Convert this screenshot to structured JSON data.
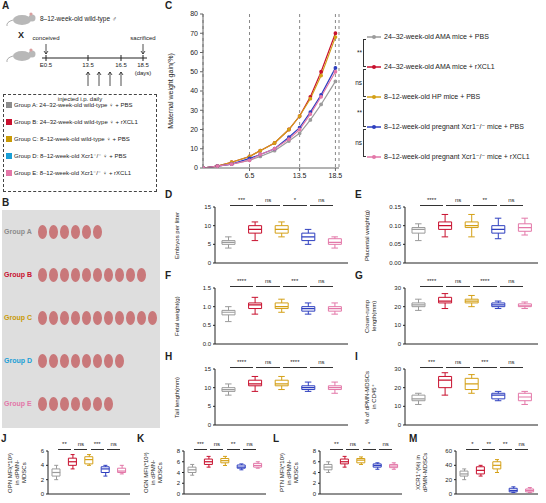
{
  "diagram": {
    "panel": "A",
    "male": "8–12-week-old wild-type ♂",
    "cross": "X",
    "events": [
      {
        "label": "conceived",
        "day": 0.5
      },
      {
        "label": "sacrificed",
        "day": 18.5
      }
    ],
    "timeline": [
      {
        "label": "E0.5",
        "day": 0.5
      },
      {
        "label": "13.5",
        "day": 13.5
      },
      {
        "label": "16.5",
        "day": 16.5
      },
      {
        "label": "18.5",
        "day": 18.5
      }
    ],
    "unit": "(days)",
    "injection_days": [
      13.5,
      14.5,
      15.5,
      16.5
    ],
    "box_title": "injected i.p. daily",
    "groups": [
      {
        "text": "Group A: 24–32-week-old wild-type ♀ + PBS",
        "color": "#8c8c8c"
      },
      {
        "text": "Group B: 24–32-week-old wild-type ♀ + rXCL1",
        "color": "#c8102e"
      },
      {
        "text": "Group C: 8–12-week-old wild-type ♀ + PBS",
        "color": "#c99a06"
      },
      {
        "text": "Group D: 8–12-week-old Xcr1⁻/⁻ ♀ + PBS",
        "color": "#1a9fd6"
      },
      {
        "text": "Group E: 8–12-week-old Xcr1⁻/⁻ ♀ + rXCL1",
        "color": "#e377a8"
      }
    ]
  },
  "photo": {
    "panel": "B",
    "rows": [
      {
        "label": "Group A",
        "color": "#8c8c8c",
        "embryos": 6
      },
      {
        "label": "Group B",
        "color": "#c8102e",
        "embryos": 10
      },
      {
        "label": "Group C",
        "color": "#c99a06",
        "embryos": 11
      },
      {
        "label": "Group D",
        "color": "#1a9fd6",
        "embryos": 8
      },
      {
        "label": "Group E",
        "color": "#e377a8",
        "embryos": 7
      }
    ]
  },
  "chart_data": [
    {
      "panel": "C",
      "type": "line",
      "ylabel": "Maternal weight gain(%)",
      "x": [
        0,
        2,
        4,
        6.5,
        8,
        10,
        12,
        13.5,
        15,
        16.5,
        18.5
      ],
      "xlim": [
        0,
        19
      ],
      "xticks": [
        6.5,
        13.5,
        18.5
      ],
      "ylim": [
        0,
        80
      ],
      "yticks": [
        0,
        10,
        20,
        30,
        40,
        50,
        60,
        70,
        80
      ],
      "grid": true,
      "marker": "circle",
      "legend": "right",
      "annotations": [
        "**",
        "ns",
        "**",
        "ns"
      ],
      "series": [
        {
          "name": "24–32-week-old AMA mice + PBS",
          "color": "#9b9b9b",
          "values": [
            0,
            1,
            2,
            4,
            6,
            9,
            14,
            18,
            25,
            33,
            45
          ]
        },
        {
          "name": "24–32-week-old AMA mice + rXCL1",
          "color": "#c8102e",
          "values": [
            0,
            1,
            3,
            6,
            9,
            13,
            20,
            27,
            37,
            50,
            70
          ]
        },
        {
          "name": "8–12-week-old HP mice + PBS",
          "color": "#d4a017",
          "values": [
            0,
            1,
            3,
            6,
            9,
            13,
            20,
            27,
            36,
            48,
            68
          ]
        },
        {
          "name": "8–12-week-old pregnant Xcr1⁻/⁻ mice + PBS",
          "color": "#2e3fbf",
          "values": [
            0,
            1,
            2,
            5,
            7,
            10,
            16,
            21,
            29,
            38,
            52
          ]
        },
        {
          "name": "8–12-week-old pregnant Xcr1⁻/⁻ mice + rXCL1",
          "color": "#e377a8",
          "values": [
            0,
            1,
            2,
            4,
            7,
            10,
            15,
            20,
            28,
            37,
            50
          ]
        }
      ]
    },
    {
      "panel": "D",
      "type": "box",
      "ylabel": "Embryos per litter",
      "ylim": [
        0,
        15
      ],
      "yticks": [
        0,
        5,
        10,
        15
      ],
      "annotations": [
        "***",
        "ns",
        "*",
        "ns"
      ],
      "colors": [
        "#9b9b9b",
        "#c8102e",
        "#d4a017",
        "#2e3fbf",
        "#e377a8"
      ],
      "boxes": [
        {
          "min": 4,
          "q1": 5,
          "median": 5.5,
          "q3": 6,
          "max": 7
        },
        {
          "min": 6,
          "q1": 8,
          "median": 9,
          "q3": 10,
          "max": 11
        },
        {
          "min": 7,
          "q1": 8,
          "median": 9,
          "q3": 10,
          "max": 11
        },
        {
          "min": 5,
          "q1": 6,
          "median": 7,
          "q3": 8,
          "max": 9
        },
        {
          "min": 4,
          "q1": 5,
          "median": 5.5,
          "q3": 6.5,
          "max": 7
        }
      ]
    },
    {
      "panel": "E",
      "type": "box",
      "ylabel": "Placental weight(g)",
      "ylim": [
        0,
        0.15
      ],
      "yticks": [
        {
          "value": 0,
          "label": "0.00"
        },
        {
          "value": 0.05,
          "label": "0.05"
        },
        {
          "value": 0.1,
          "label": "0.10"
        },
        {
          "value": 0.15,
          "label": "0.15"
        }
      ],
      "annotations": [
        "****",
        "ns",
        "**",
        "ns"
      ],
      "colors": [
        "#9b9b9b",
        "#c8102e",
        "#d4a017",
        "#2e3fbf",
        "#e377a8"
      ],
      "boxes": [
        {
          "min": 0.06,
          "q1": 0.08,
          "median": 0.09,
          "q3": 0.095,
          "max": 0.105
        },
        {
          "min": 0.07,
          "q1": 0.09,
          "median": 0.1,
          "q3": 0.11,
          "max": 0.13
        },
        {
          "min": 0.07,
          "q1": 0.095,
          "median": 0.1,
          "q3": 0.11,
          "max": 0.13
        },
        {
          "min": 0.065,
          "q1": 0.08,
          "median": 0.09,
          "q3": 0.1,
          "max": 0.12
        },
        {
          "min": 0.075,
          "q1": 0.085,
          "median": 0.095,
          "q3": 0.105,
          "max": 0.12
        }
      ]
    },
    {
      "panel": "F",
      "type": "box",
      "ylabel": "Fetal weight(g)",
      "ylim": [
        0,
        1.5
      ],
      "yticks": [
        {
          "value": 0,
          "label": "0.0"
        },
        {
          "value": 0.5,
          "label": "0.5"
        },
        {
          "value": 1,
          "label": "1.0"
        },
        {
          "value": 1.5,
          "label": "1.5"
        }
      ],
      "annotations": [
        "****",
        "ns",
        "***",
        "ns"
      ],
      "colors": [
        "#9b9b9b",
        "#c8102e",
        "#d4a017",
        "#2e3fbf",
        "#e377a8"
      ],
      "boxes": [
        {
          "min": 0.6,
          "q1": 0.78,
          "median": 0.85,
          "q3": 0.9,
          "max": 1.0
        },
        {
          "min": 0.8,
          "q1": 0.95,
          "median": 1.05,
          "q3": 1.1,
          "max": 1.25
        },
        {
          "min": 0.85,
          "q1": 0.95,
          "median": 1.0,
          "q3": 1.1,
          "max": 1.2
        },
        {
          "min": 0.8,
          "q1": 0.88,
          "median": 0.95,
          "q3": 1.0,
          "max": 1.1
        },
        {
          "min": 0.8,
          "q1": 0.88,
          "median": 0.95,
          "q3": 1.0,
          "max": 1.1
        }
      ]
    },
    {
      "panel": "G",
      "type": "box",
      "ylabel": "Crown-rump length(mm)",
      "ylim": [
        0,
        30
      ],
      "yticks": [
        0,
        10,
        20,
        30
      ],
      "annotations": [
        "****",
        "ns",
        "****",
        "ns"
      ],
      "colors": [
        "#9b9b9b",
        "#c8102e",
        "#d4a017",
        "#2e3fbf",
        "#e377a8"
      ],
      "boxes": [
        {
          "min": 18,
          "q1": 20,
          "median": 21,
          "q3": 22,
          "max": 24
        },
        {
          "min": 19,
          "q1": 22,
          "median": 23,
          "q3": 25,
          "max": 27
        },
        {
          "min": 20,
          "q1": 22,
          "median": 23,
          "q3": 24,
          "max": 26
        },
        {
          "min": 19,
          "q1": 20,
          "median": 21,
          "q3": 22,
          "max": 23
        },
        {
          "min": 19,
          "q1": 20,
          "median": 20.5,
          "q3": 21.5,
          "max": 22.5
        }
      ]
    },
    {
      "panel": "H",
      "type": "box",
      "ylabel": "Tail length(mm)",
      "ylim": [
        0,
        15
      ],
      "yticks": [
        0,
        5,
        10,
        15
      ],
      "annotations": [
        "****",
        "ns",
        "****",
        "ns"
      ],
      "colors": [
        "#9b9b9b",
        "#c8102e",
        "#d4a017",
        "#2e3fbf",
        "#e377a8"
      ],
      "boxes": [
        {
          "min": 8,
          "q1": 9,
          "median": 9.5,
          "q3": 10,
          "max": 11
        },
        {
          "min": 9,
          "q1": 10.5,
          "median": 11,
          "q3": 12,
          "max": 13
        },
        {
          "min": 9.5,
          "q1": 10.5,
          "median": 11,
          "q3": 12,
          "max": 13
        },
        {
          "min": 9,
          "q1": 9.5,
          "median": 10,
          "q3": 10.5,
          "max": 11.5
        },
        {
          "min": 8.5,
          "q1": 9.5,
          "median": 10,
          "q3": 10.5,
          "max": 11.5
        }
      ]
    },
    {
      "panel": "I",
      "type": "box",
      "ylabel": "% of dPMN-MDSCs in CD45⁺",
      "ylim": [
        0,
        30
      ],
      "yticks": [
        0,
        10,
        20,
        30
      ],
      "annotations": [
        "***",
        "ns",
        "***",
        "ns"
      ],
      "colors": [
        "#9b9b9b",
        "#c8102e",
        "#d4a017",
        "#2e3fbf",
        "#e377a8"
      ],
      "boxes": [
        {
          "min": 11,
          "q1": 13,
          "median": 14,
          "q3": 16,
          "max": 17
        },
        {
          "min": 16,
          "q1": 20,
          "median": 24,
          "q3": 26,
          "max": 28
        },
        {
          "min": 17,
          "q1": 19,
          "median": 22,
          "q3": 25,
          "max": 27
        },
        {
          "min": 13,
          "q1": 14,
          "median": 16,
          "q3": 17,
          "max": 18
        },
        {
          "min": 11,
          "q1": 13,
          "median": 15,
          "q3": 17,
          "max": 18
        }
      ]
    },
    {
      "panel": "J",
      "type": "box",
      "ylabel": "OPN MFI(*10³) in dPMN-MDSCs",
      "ylim": [
        0,
        6
      ],
      "yticks": [
        0,
        2,
        4,
        6
      ],
      "annotations": [
        "**",
        "ns",
        "***",
        "ns"
      ],
      "colors": [
        "#9b9b9b",
        "#c8102e",
        "#d4a017",
        "#2e3fbf",
        "#e377a8"
      ],
      "boxes": [
        {
          "min": 2,
          "q1": 2.5,
          "median": 3,
          "q3": 3.5,
          "max": 4
        },
        {
          "min": 3.5,
          "q1": 4,
          "median": 4.5,
          "q3": 5,
          "max": 5.5
        },
        {
          "min": 4,
          "q1": 4.2,
          "median": 4.8,
          "q3": 5.2,
          "max": 5.5
        },
        {
          "min": 2.5,
          "q1": 3,
          "median": 3.5,
          "q3": 3.8,
          "max": 4
        },
        {
          "min": 2.8,
          "q1": 3,
          "median": 3.2,
          "q3": 3.6,
          "max": 4
        }
      ]
    },
    {
      "panel": "K",
      "type": "box",
      "ylabel": "OGN MFI(*10³) in dPMN-MDSCs",
      "ylim": [
        0,
        8
      ],
      "yticks": [
        0,
        2,
        4,
        6,
        8
      ],
      "annotations": [
        "***",
        "ns",
        "**",
        "ns"
      ],
      "colors": [
        "#9b9b9b",
        "#c8102e",
        "#d4a017",
        "#2e3fbf",
        "#e377a8"
      ],
      "boxes": [
        {
          "min": 3.5,
          "q1": 4,
          "median": 4.5,
          "q3": 5,
          "max": 5.5
        },
        {
          "min": 5,
          "q1": 5.5,
          "median": 6,
          "q3": 6.5,
          "max": 7
        },
        {
          "min": 5.3,
          "q1": 5.8,
          "median": 6.2,
          "q3": 6.6,
          "max": 7
        },
        {
          "min": 4.5,
          "q1": 4.8,
          "median": 5,
          "q3": 5.4,
          "max": 5.6
        },
        {
          "min": 4.8,
          "q1": 5,
          "median": 5.3,
          "q3": 5.7,
          "max": 6
        }
      ]
    },
    {
      "panel": "L",
      "type": "box",
      "ylabel": "PTN MFI(*10³) in dPMN-MDSCs",
      "ylim": [
        0,
        8
      ],
      "yticks": [
        0,
        2,
        4,
        6,
        8
      ],
      "annotations": [
        "**",
        "ns",
        "*",
        "ns"
      ],
      "colors": [
        "#9b9b9b",
        "#c8102e",
        "#d4a017",
        "#2e3fbf",
        "#e377a8"
      ],
      "boxes": [
        {
          "min": 4,
          "q1": 4.5,
          "median": 5,
          "q3": 5.5,
          "max": 6
        },
        {
          "min": 5,
          "q1": 5.6,
          "median": 6,
          "q3": 6.5,
          "max": 7
        },
        {
          "min": 5.5,
          "q1": 5.8,
          "median": 6.3,
          "q3": 6.6,
          "max": 6.9
        },
        {
          "min": 4.6,
          "q1": 5,
          "median": 5.3,
          "q3": 5.6,
          "max": 5.8
        },
        {
          "min": 4.6,
          "q1": 4.9,
          "median": 5.2,
          "q3": 5.5,
          "max": 5.8
        }
      ]
    },
    {
      "panel": "M",
      "type": "box",
      "ylabel": "XCR1⁺(%) in dPMN-MDSCs",
      "ylim": [
        0,
        60
      ],
      "yticks": [
        0,
        20,
        40,
        60
      ],
      "annotations": [
        "*",
        "**",
        "**",
        "ns"
      ],
      "colors": [
        "#9b9b9b",
        "#c8102e",
        "#d4a017",
        "#2e3fbf",
        "#e377a8"
      ],
      "boxes": [
        {
          "min": 20,
          "q1": 25,
          "median": 28,
          "q3": 32,
          "max": 35
        },
        {
          "min": 25,
          "q1": 28,
          "median": 33,
          "q3": 38,
          "max": 40
        },
        {
          "min": 30,
          "q1": 35,
          "median": 40,
          "q3": 45,
          "max": 48
        },
        {
          "min": 2,
          "q1": 3,
          "median": 5,
          "q3": 8,
          "max": 10
        },
        {
          "min": 2,
          "q1": 3,
          "median": 5,
          "q3": 7,
          "max": 9
        }
      ]
    }
  ]
}
